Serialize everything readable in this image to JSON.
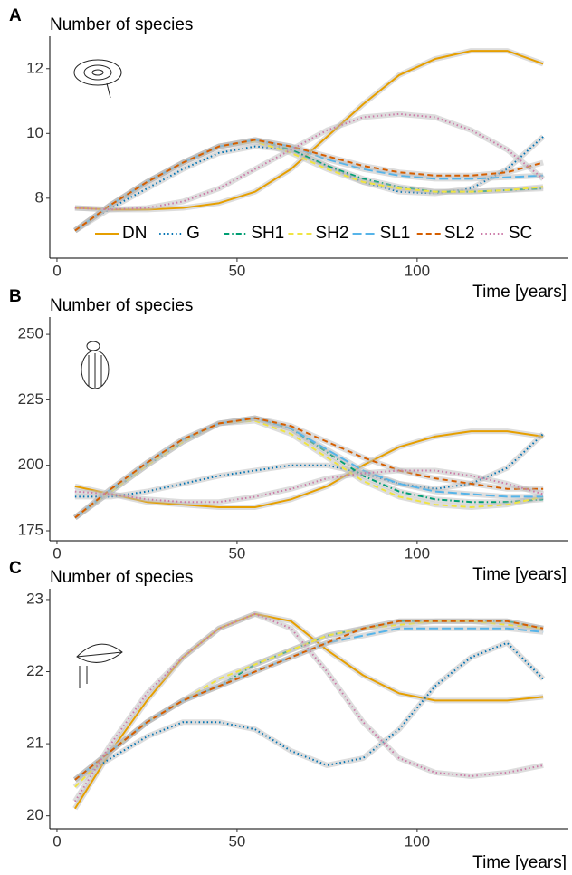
{
  "chart_data": [
    {
      "type": "line",
      "panel_label": "A",
      "title": "Number of species",
      "x_label": "Time [years]",
      "x": [
        5,
        15,
        25,
        35,
        45,
        55,
        65,
        75,
        85,
        95,
        105,
        115,
        125,
        135
      ],
      "xlim": [
        -2,
        142
      ],
      "xticks": [
        0,
        50,
        100
      ],
      "ylim": [
        6.15,
        13.0
      ],
      "yticks": [
        8,
        10,
        12
      ],
      "legend": "bottom",
      "series": [
        {
          "name": "DN",
          "color": "#E69F00",
          "linestyle": "solid",
          "values": [
            7.7,
            7.65,
            7.65,
            7.7,
            7.85,
            8.2,
            8.9,
            9.9,
            10.9,
            11.8,
            12.3,
            12.55,
            12.55,
            12.15
          ]
        },
        {
          "name": "G",
          "color": "#0072B2",
          "linestyle": "dotted",
          "values": [
            7.0,
            7.7,
            8.3,
            8.9,
            9.4,
            9.6,
            9.5,
            9.0,
            8.5,
            8.2,
            8.15,
            8.3,
            8.9,
            9.9
          ]
        },
        {
          "name": "SH1",
          "color": "#009E73",
          "linestyle": "dashdot",
          "values": [
            7.0,
            7.8,
            8.5,
            9.1,
            9.6,
            9.8,
            9.5,
            9.0,
            8.6,
            8.35,
            8.2,
            8.2,
            8.25,
            8.3
          ]
        },
        {
          "name": "SH2",
          "color": "#F0E442",
          "linestyle": "dashed",
          "values": [
            7.0,
            7.8,
            8.5,
            9.1,
            9.6,
            9.75,
            9.4,
            8.9,
            8.5,
            8.3,
            8.2,
            8.2,
            8.25,
            8.35
          ]
        },
        {
          "name": "SL1",
          "color": "#56B4E9",
          "linestyle": "longdash",
          "values": [
            7.0,
            7.8,
            8.5,
            9.1,
            9.6,
            9.8,
            9.6,
            9.2,
            8.9,
            8.7,
            8.6,
            8.6,
            8.65,
            8.7
          ]
        },
        {
          "name": "SL2",
          "color": "#D55E00",
          "linestyle": "dashed",
          "values": [
            7.0,
            7.8,
            8.5,
            9.1,
            9.6,
            9.8,
            9.6,
            9.3,
            9.0,
            8.8,
            8.7,
            8.7,
            8.8,
            9.1
          ]
        },
        {
          "name": "SC",
          "color": "#CC79A7",
          "linestyle": "dotted",
          "values": [
            7.7,
            7.65,
            7.7,
            7.9,
            8.3,
            8.9,
            9.5,
            10.1,
            10.5,
            10.6,
            10.5,
            10.1,
            9.5,
            8.6
          ]
        }
      ]
    },
    {
      "type": "line",
      "panel_label": "B",
      "title": "Number of species",
      "x_label": "Time [years]",
      "x": [
        5,
        15,
        25,
        35,
        45,
        55,
        65,
        75,
        85,
        95,
        105,
        115,
        125,
        135
      ],
      "xlim": [
        -2,
        142
      ],
      "xticks": [
        0,
        50,
        100
      ],
      "ylim": [
        171.2,
        256.6
      ],
      "yticks": [
        175,
        200,
        225,
        250
      ],
      "series": [
        {
          "name": "DN",
          "color": "#E69F00",
          "linestyle": "solid",
          "values": [
            192,
            189,
            186,
            185,
            184,
            184,
            187,
            192,
            200,
            207,
            211,
            213,
            213,
            211
          ]
        },
        {
          "name": "G",
          "color": "#0072B2",
          "linestyle": "dotted",
          "values": [
            188,
            188,
            190,
            193,
            196,
            198,
            200,
            200,
            197,
            193,
            191,
            193,
            199,
            212
          ]
        },
        {
          "name": "SH1",
          "color": "#009E73",
          "linestyle": "dashdot",
          "values": [
            180,
            190,
            200,
            209,
            216,
            218,
            214,
            205,
            196,
            190,
            187,
            186,
            186,
            187
          ]
        },
        {
          "name": "SH2",
          "color": "#F0E442",
          "linestyle": "dashed",
          "values": [
            180,
            190,
            200,
            209,
            216,
            217,
            212,
            203,
            194,
            188,
            185,
            184,
            185,
            188
          ]
        },
        {
          "name": "SL1",
          "color": "#56B4E9",
          "linestyle": "longdash",
          "values": [
            180,
            191,
            201,
            210,
            216,
            218,
            214,
            206,
            198,
            193,
            190,
            189,
            188,
            188
          ]
        },
        {
          "name": "SL2",
          "color": "#D55E00",
          "linestyle": "dashed",
          "values": [
            180,
            191,
            201,
            210,
            216,
            218,
            215,
            209,
            203,
            198,
            195,
            193,
            191,
            191
          ]
        },
        {
          "name": "SC",
          "color": "#CC79A7",
          "linestyle": "dotted",
          "values": [
            190,
            189,
            187,
            186,
            186,
            188,
            191,
            195,
            197,
            198,
            198,
            196,
            193,
            189
          ]
        }
      ]
    },
    {
      "type": "line",
      "panel_label": "C",
      "title": "Number of species",
      "x_label": "Time [years]",
      "x": [
        5,
        15,
        25,
        35,
        45,
        55,
        65,
        75,
        85,
        95,
        105,
        115,
        125,
        135
      ],
      "xlim": [
        -2,
        142
      ],
      "xticks": [
        0,
        50,
        100
      ],
      "ylim": [
        19.82,
        23.15
      ],
      "yticks": [
        20,
        21,
        22,
        23
      ],
      "series": [
        {
          "name": "DN",
          "color": "#E69F00",
          "linestyle": "solid",
          "values": [
            20.1,
            20.9,
            21.6,
            22.2,
            22.6,
            22.8,
            22.7,
            22.3,
            21.95,
            21.7,
            21.6,
            21.6,
            21.6,
            21.65
          ]
        },
        {
          "name": "G",
          "color": "#0072B2",
          "linestyle": "dotted",
          "values": [
            20.5,
            20.8,
            21.1,
            21.3,
            21.3,
            21.2,
            20.9,
            20.7,
            20.8,
            21.2,
            21.8,
            22.2,
            22.4,
            21.9
          ]
        },
        {
          "name": "SH1",
          "color": "#009E73",
          "linestyle": "dashdot",
          "values": [
            20.5,
            20.9,
            21.3,
            21.6,
            21.8,
            22.1,
            22.3,
            22.5,
            22.6,
            22.7,
            22.7,
            22.7,
            22.7,
            22.6
          ]
        },
        {
          "name": "SH2",
          "color": "#F0E442",
          "linestyle": "dashed",
          "values": [
            20.4,
            20.9,
            21.3,
            21.6,
            21.9,
            22.1,
            22.3,
            22.5,
            22.6,
            22.65,
            22.7,
            22.7,
            22.65,
            22.6
          ]
        },
        {
          "name": "SL1",
          "color": "#56B4E9",
          "linestyle": "longdash",
          "values": [
            20.5,
            20.9,
            21.3,
            21.6,
            21.8,
            22.0,
            22.2,
            22.4,
            22.5,
            22.6,
            22.6,
            22.6,
            22.6,
            22.55
          ]
        },
        {
          "name": "SL2",
          "color": "#D55E00",
          "linestyle": "dashed",
          "values": [
            20.5,
            20.9,
            21.3,
            21.6,
            21.8,
            22.0,
            22.2,
            22.4,
            22.6,
            22.7,
            22.7,
            22.7,
            22.7,
            22.6
          ]
        },
        {
          "name": "SC",
          "color": "#CC79A7",
          "linestyle": "dotted",
          "values": [
            20.2,
            21.0,
            21.7,
            22.2,
            22.6,
            22.8,
            22.6,
            22.0,
            21.3,
            20.8,
            20.6,
            20.55,
            20.6,
            20.7
          ]
        }
      ]
    }
  ]
}
